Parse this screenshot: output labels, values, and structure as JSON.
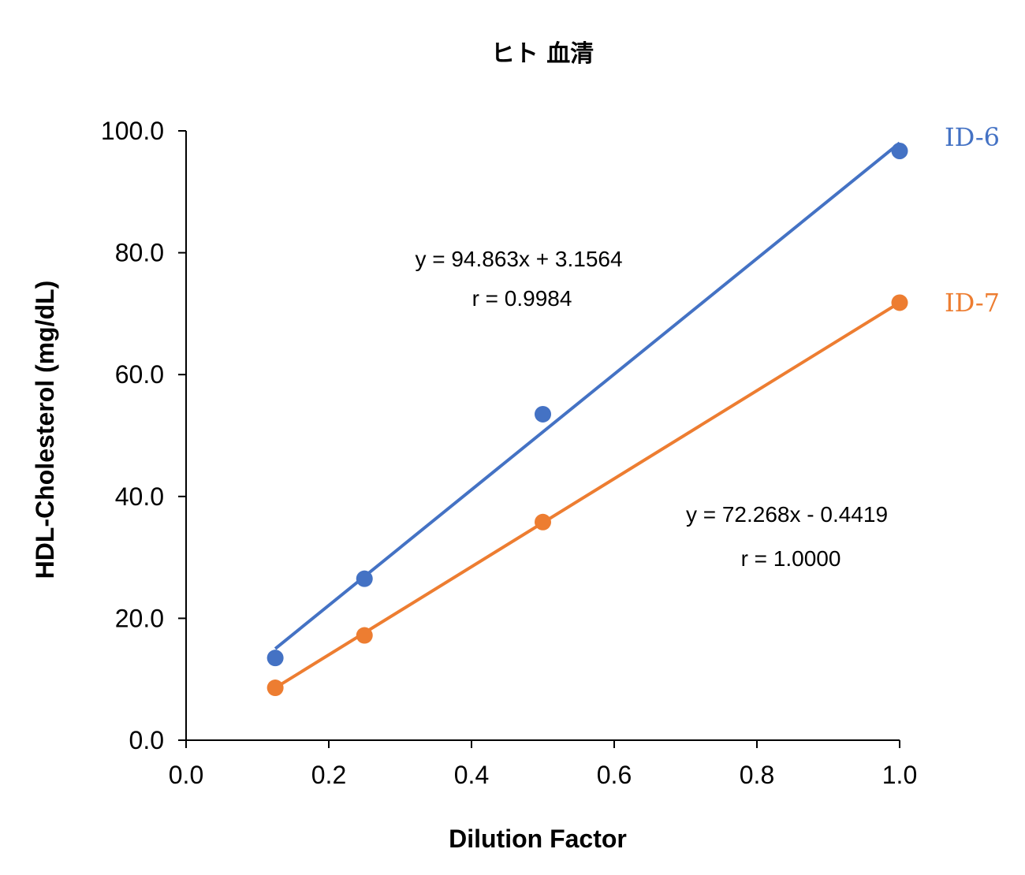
{
  "chart_data": {
    "type": "scatter",
    "title": "ヒト 血清",
    "xlabel": "Dilution Factor",
    "ylabel": "HDL-Cholesterol (mg/dL)",
    "xlim": [
      0,
      1
    ],
    "ylim": [
      0,
      100
    ],
    "x_ticks": [
      "0.0",
      "0.2",
      "0.4",
      "0.6",
      "0.8",
      "1.0"
    ],
    "y_ticks": [
      "0.0",
      "20.0",
      "40.0",
      "60.0",
      "80.0",
      "100.0"
    ],
    "grid": false,
    "series": [
      {
        "name": "ID-6",
        "color": "#4472C4",
        "x": [
          0.125,
          0.25,
          0.5,
          1.0
        ],
        "y": [
          13.5,
          26.5,
          53.5,
          96.7
        ],
        "trendline": {
          "slope": 94.863,
          "intercept": 3.1564
        },
        "equation": "y = 94.863x + 3.1564",
        "r_text": "r = 0.9984"
      },
      {
        "name": "ID-7",
        "color": "#ED7D31",
        "x": [
          0.125,
          0.25,
          0.5,
          1.0
        ],
        "y": [
          8.6,
          17.2,
          35.8,
          71.8
        ],
        "trendline": {
          "slope": 72.268,
          "intercept": -0.4419
        },
        "equation": "y = 72.268x - 0.4419",
        "r_text": "r = 1.0000"
      }
    ]
  }
}
